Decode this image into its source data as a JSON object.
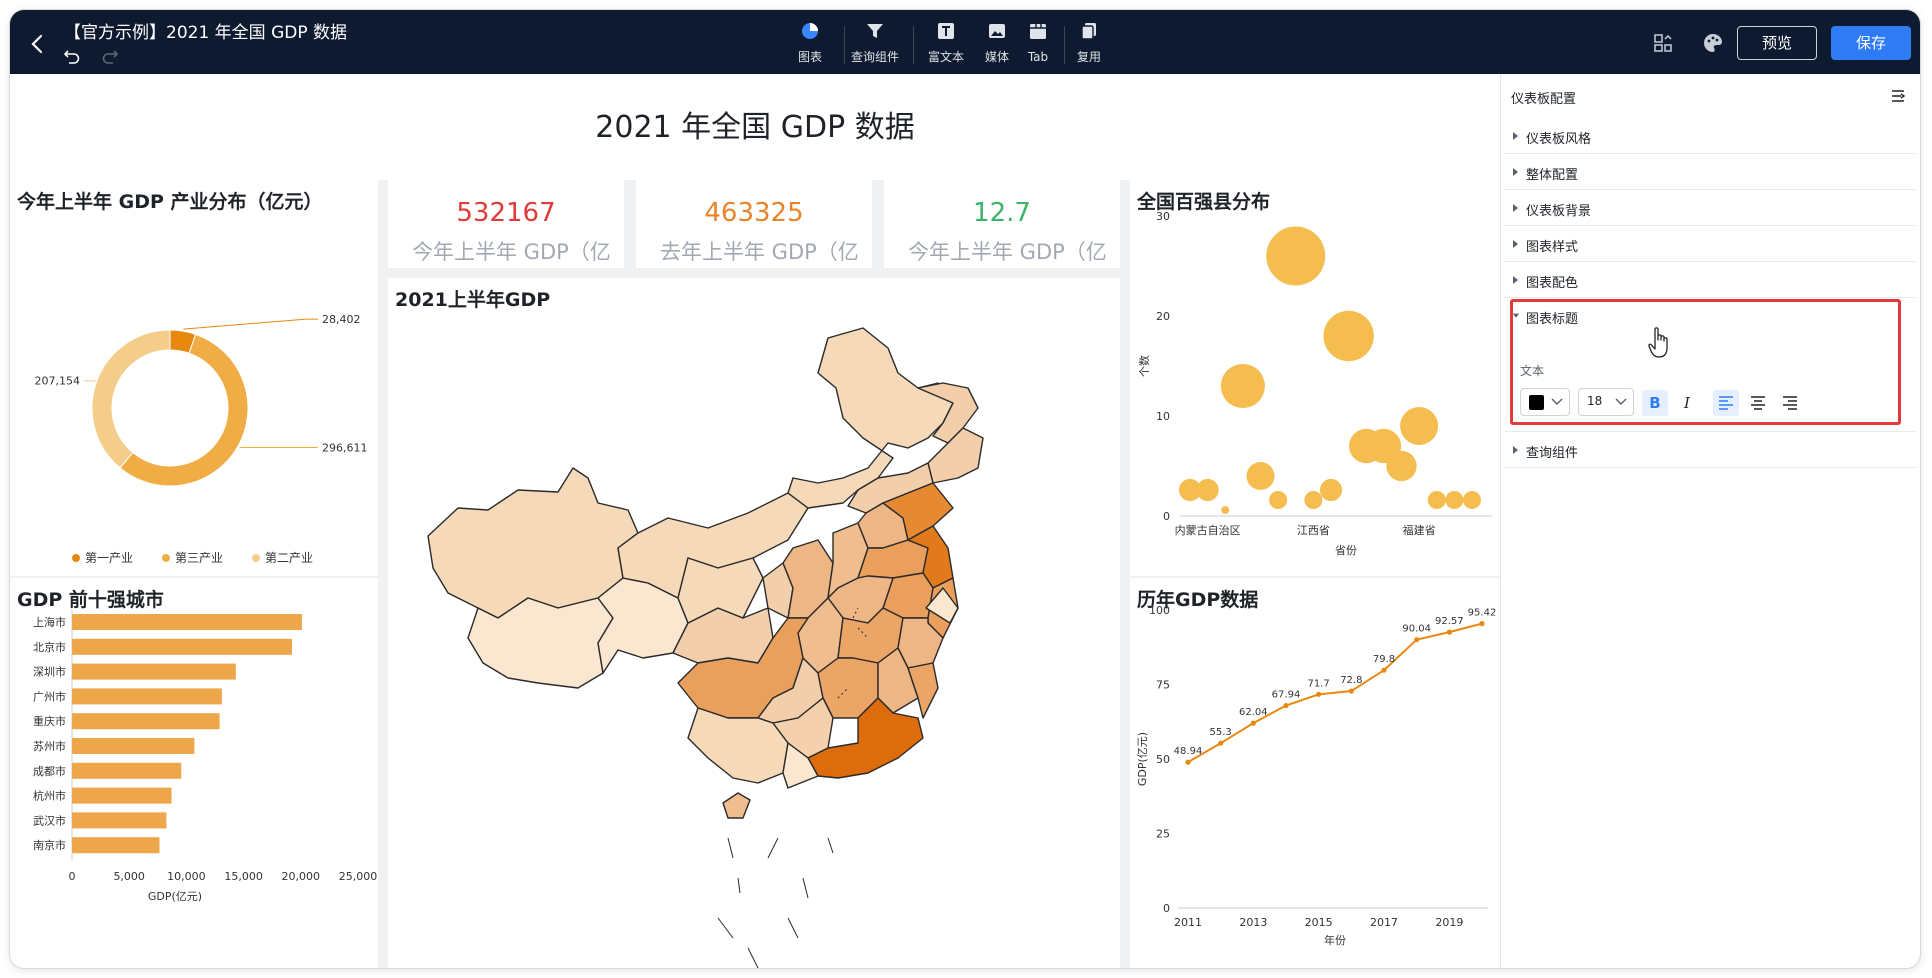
{
  "header": {
    "title": "【官方示例】2021 年全国 GDP 数据",
    "tools": [
      {
        "label": "图表",
        "icon": "pie-chart-icon"
      },
      {
        "label": "查询组件",
        "icon": "filter-icon"
      },
      {
        "label": "富文本",
        "icon": "rich-text-icon"
      },
      {
        "label": "媒体",
        "icon": "image-icon"
      },
      {
        "label": "Tab",
        "icon": "tab-icon"
      },
      {
        "label": "复用",
        "icon": "copy-icon"
      }
    ],
    "preview_label": "预览",
    "save_label": "保存"
  },
  "dashboard": {
    "title": "2021 年全国 GDP 数据",
    "kpis": [
      {
        "value": "532167",
        "label": "今年上半年 GDP（亿",
        "color": "#e03a3a"
      },
      {
        "value": "463325",
        "label": "去年上半年 GDP（亿",
        "color": "#e8852a"
      },
      {
        "value": "12.7",
        "label": "今年上半年 GDP（亿",
        "color": "#3fb36b"
      }
    ],
    "map_title": "2021上半年GDP"
  },
  "colors": {
    "accent": "#f0a63b",
    "accent_dark": "#e3890f",
    "primary": "#2f7bf5",
    "topbar": "#0e1a2f"
  },
  "chart_data": [
    {
      "type": "pie",
      "title": "今年上半年 GDP 产业分布（亿元）",
      "variant": "donut",
      "labels": [
        "第一产业",
        "第三产业",
        "第二产业"
      ],
      "values": [
        28402,
        296611,
        207154
      ],
      "value_labels": [
        "28,402",
        "296,611",
        "207,154"
      ],
      "colors": [
        "#e8890f",
        "#f0ad45",
        "#f4cd8a"
      ],
      "legend": "bottom"
    },
    {
      "type": "bar",
      "orientation": "horizontal",
      "title": "GDP 前十强城市",
      "categories": [
        "上海市",
        "北京市",
        "深圳市",
        "广州市",
        "重庆市",
        "苏州市",
        "成都市",
        "杭州市",
        "武汉市",
        "南京市"
      ],
      "values": [
        20100,
        19230,
        14320,
        13100,
        12900,
        10700,
        9550,
        8700,
        8250,
        7650
      ],
      "xlabel": "GDP(亿元)",
      "xlim": [
        0,
        25000
      ],
      "xticks": [
        "0",
        "5,000",
        "10,000",
        "15,000",
        "20,000",
        "25,000"
      ],
      "color": "#eda64a"
    },
    {
      "type": "scatter",
      "title": "全国百强县分布",
      "xlabel": "省份",
      "ylabel": "个数",
      "ylim": [
        0,
        30
      ],
      "yticks": [
        "0",
        "10",
        "20",
        "30"
      ],
      "xticklabels": [
        "内蒙古自治区",
        "江西省",
        "福建省"
      ],
      "values": [
        2,
        2,
        0,
        13,
        4,
        1,
        26,
        1,
        2,
        18,
        7,
        7,
        5,
        9,
        1,
        1,
        1
      ],
      "color": "#f5bd4f"
    },
    {
      "type": "line",
      "title": "历年GDP数据",
      "xlabel": "年份",
      "ylabel": "GDP(亿元)",
      "x": [
        2011,
        2012,
        2013,
        2014,
        2015,
        2016,
        2017,
        2018,
        2019,
        2020
      ],
      "values": [
        48.94,
        55.3,
        62.04,
        67.94,
        71.7,
        72.8,
        79.8,
        90.04,
        92.57,
        95.42
      ],
      "ylim": [
        0,
        100
      ],
      "yticks": [
        "0",
        "25",
        "50",
        "75",
        "100"
      ],
      "xticks": [
        "2011",
        "2013",
        "2015",
        "2017",
        "2019"
      ],
      "color": "#e8890f"
    }
  ],
  "panel": {
    "title": "仪表板配置",
    "sections": [
      "仪表板风格",
      "整体配置",
      "仪表板背景",
      "图表样式",
      "图表配色",
      "图表标题",
      "查询组件"
    ],
    "expanded_section": "图表标题",
    "text_label": "文本",
    "font_size": "18",
    "text_color": "#000000",
    "bold_symbol": "B",
    "italic_symbol": "I"
  }
}
